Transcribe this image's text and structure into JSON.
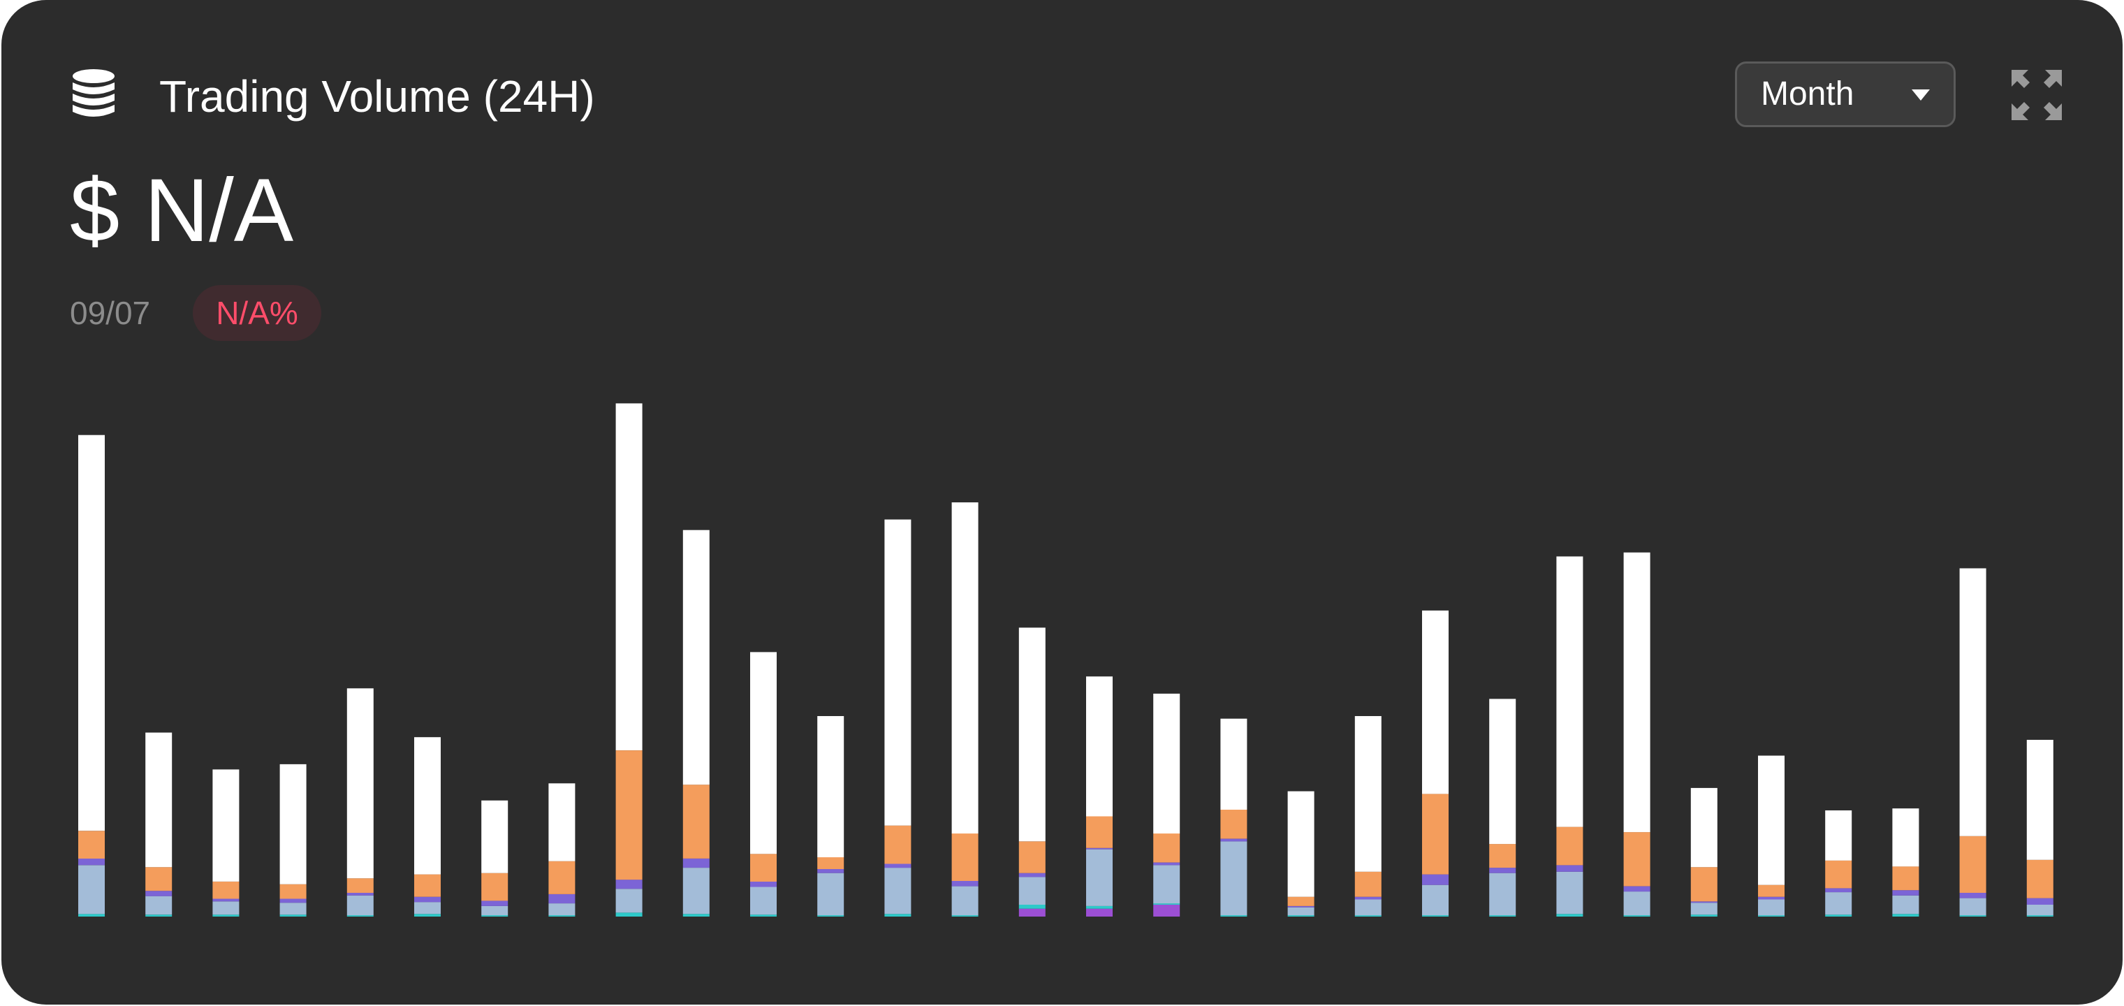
{
  "header": {
    "title": "Trading Volume (24H)",
    "icon": "coins-stack-icon",
    "value": "$ N/A",
    "date": "09/07",
    "change": "N/A%",
    "change_color": "#ff4d6a"
  },
  "controls": {
    "period": "Month",
    "caret_icon": "caret-down-icon",
    "expand_icon": "expand-icon"
  },
  "colors": {
    "background": "#2c2c2c",
    "white": "#ffffff",
    "orange": "#f49d5c",
    "purple": "#7c64d6",
    "blue": "#a3bcd8",
    "teal": "#2ec9c9",
    "magenta": "#9c4fd4"
  },
  "chart_data": {
    "type": "bar",
    "stacked": true,
    "axes_visible": false,
    "grid": false,
    "legend": "none",
    "x": [
      1,
      2,
      3,
      4,
      5,
      6,
      7,
      8,
      9,
      10,
      11,
      12,
      13,
      14,
      15,
      16,
      17,
      18,
      19,
      20,
      21,
      22,
      23,
      24,
      25,
      26,
      27,
      28,
      29,
      30
    ],
    "ylim": [
      0,
      860
    ],
    "series": [
      {
        "color": "#9c4fd4",
        "values": [
          0,
          0,
          0,
          0,
          0,
          0,
          0,
          0,
          0,
          0,
          0,
          0,
          0,
          0,
          12,
          12,
          18,
          0,
          0,
          0,
          0,
          0,
          0,
          0,
          0,
          0,
          0,
          0,
          0,
          0
        ]
      },
      {
        "color": "#2ec9c9",
        "values": [
          4,
          3,
          3,
          3,
          2,
          4,
          2,
          2,
          6,
          4,
          3,
          2,
          4,
          2,
          6,
          4,
          2,
          2,
          2,
          2,
          2,
          2,
          4,
          2,
          3,
          2,
          3,
          4,
          2,
          2
        ]
      },
      {
        "color": "#a3bcd8",
        "values": [
          74,
          28,
          20,
          18,
          30,
          18,
          14,
          18,
          36,
          70,
          42,
          64,
          70,
          44,
          42,
          86,
          58,
          112,
          12,
          24,
          46,
          64,
          64,
          36,
          18,
          24,
          34,
          28,
          26,
          16
        ]
      },
      {
        "color": "#7c64d6",
        "values": [
          10,
          8,
          4,
          6,
          4,
          8,
          8,
          14,
          14,
          14,
          8,
          6,
          6,
          8,
          6,
          2,
          4,
          4,
          2,
          4,
          16,
          8,
          10,
          8,
          2,
          4,
          6,
          8,
          8,
          10
        ]
      },
      {
        "color": "#f49d5c",
        "values": [
          42,
          36,
          26,
          22,
          22,
          34,
          42,
          50,
          196,
          112,
          42,
          18,
          58,
          72,
          48,
          48,
          44,
          44,
          14,
          38,
          122,
          36,
          58,
          82,
          52,
          18,
          42,
          36,
          86,
          58
        ]
      },
      {
        "color": "#ffffff",
        "values": [
          600,
          204,
          170,
          182,
          288,
          208,
          110,
          118,
          526,
          386,
          306,
          214,
          464,
          502,
          324,
          212,
          212,
          138,
          160,
          236,
          278,
          220,
          410,
          424,
          120,
          196,
          76,
          88,
          406,
          182
        ]
      }
    ]
  }
}
